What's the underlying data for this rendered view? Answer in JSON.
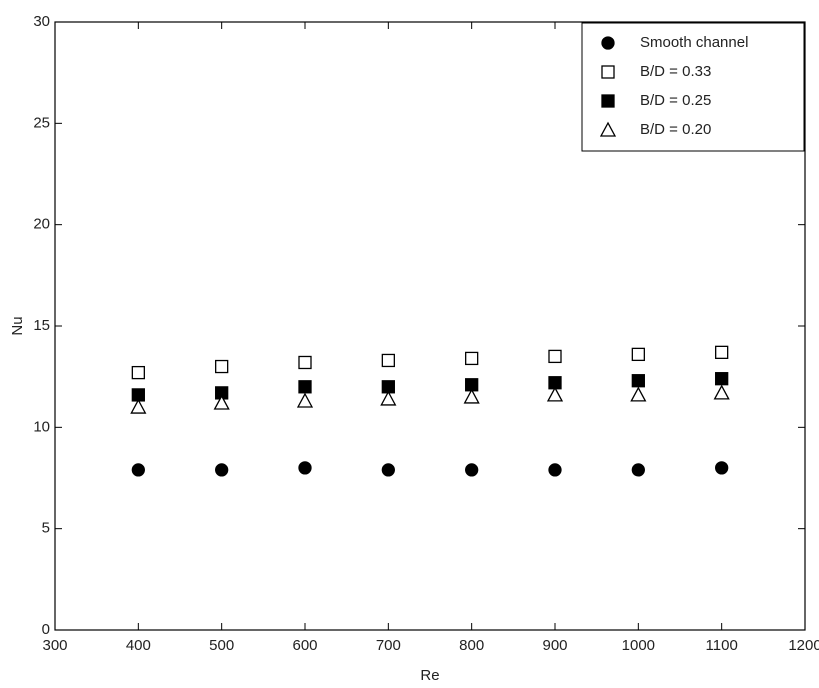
{
  "chart_data": {
    "type": "scatter",
    "x_label": "Re",
    "y_label": "Nu",
    "x": [
      400,
      500,
      600,
      700,
      800,
      900,
      1000,
      1100
    ],
    "series": [
      {
        "name": "Smooth channel",
        "color": "#000000",
        "marker": "circle",
        "filled": true,
        "values": [
          7.9,
          7.9,
          8.0,
          7.9,
          7.9,
          7.9,
          7.9,
          8.0
        ]
      },
      {
        "name": "B/D = 0.33",
        "color": "#000000",
        "marker": "square",
        "filled": false,
        "values": [
          12.7,
          13.0,
          13.2,
          13.3,
          13.4,
          13.5,
          13.6,
          13.7
        ]
      },
      {
        "name": "B/D = 0.25",
        "color": "#000000",
        "marker": "square",
        "filled": true,
        "values": [
          11.6,
          11.7,
          12.0,
          12.0,
          12.1,
          12.2,
          12.3,
          12.4
        ]
      },
      {
        "name": "B/D = 0.20",
        "color": "#000000",
        "marker": "triangle",
        "filled": false,
        "values": [
          11.0,
          11.2,
          11.3,
          11.4,
          11.5,
          11.6,
          11.6,
          11.7
        ]
      }
    ],
    "xlim": [
      300,
      1200
    ],
    "xticks": [
      300,
      400,
      500,
      600,
      700,
      800,
      900,
      1000,
      1100,
      1200
    ],
    "ylim": [
      0,
      30
    ],
    "yticks": [
      0,
      5,
      10,
      15,
      20,
      25,
      30
    ],
    "grid": false,
    "legend": "upper right"
  }
}
